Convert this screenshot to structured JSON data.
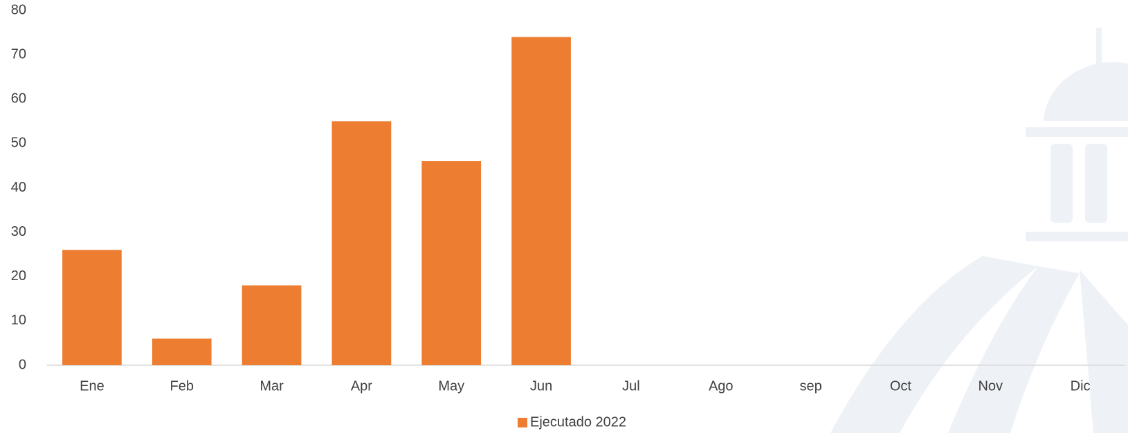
{
  "chart_data": {
    "type": "bar",
    "categories": [
      "Ene",
      "Feb",
      "Mar",
      "Apr",
      "May",
      "Jun",
      "Jul",
      "Ago",
      "sep",
      "Oct",
      "Nov",
      "Dic"
    ],
    "series": [
      {
        "name": "Ejecutado 2022",
        "color": "#ed7d31",
        "values": [
          26,
          6,
          18,
          55,
          46,
          74,
          null,
          null,
          null,
          null,
          null,
          null
        ]
      }
    ],
    "ylim": [
      0,
      80
    ],
    "yticks": [
      0,
      10,
      20,
      30,
      40,
      50,
      60,
      70,
      80
    ],
    "grid": false,
    "legend": "bottom"
  }
}
